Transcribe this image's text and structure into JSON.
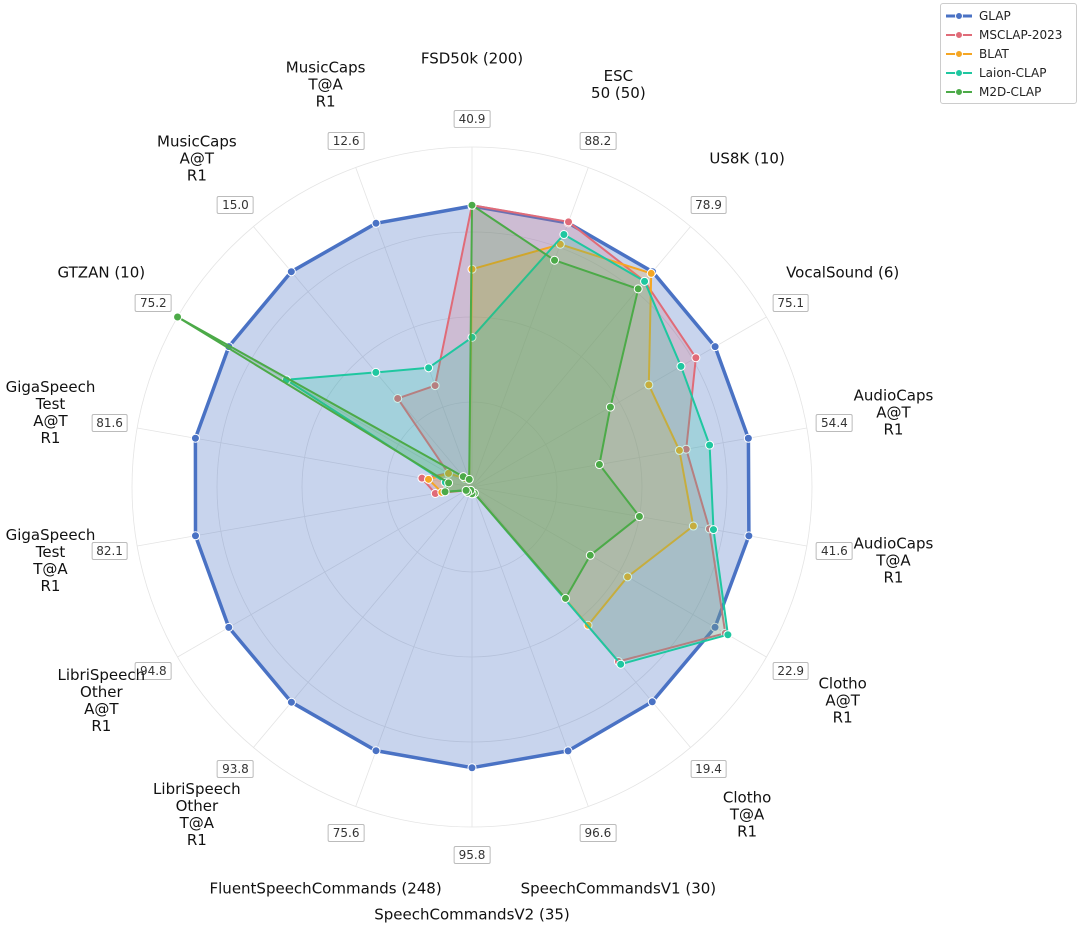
{
  "chart_data": {
    "type": "radar",
    "categories": [
      "FSD50k (200)",
      "ESC\n50 (50)",
      "US8K (10)",
      "VocalSound (6)",
      "AudioCaps\nA@T\nR1",
      "AudioCaps\nT@A\nR1",
      "Clotho\nA@T\nR1",
      "Clotho\nT@A\nR1",
      "SpeechCommandsV1 (30)",
      "SpeechCommandsV2 (35)",
      "FluentSpeechCommands (248)",
      "LibriSpeech\nOther\nT@A\nR1",
      "LibriSpeech\nOther\nA@T\nR1",
      "GigaSpeech\nTest\nT@A\nR1",
      "GigaSpeech\nTest\nA@T\nR1",
      "GTZAN (10)",
      "MusicCaps\nA@T\nR1",
      "MusicCaps\nT@A\nR1"
    ],
    "axis_max": [
      40.9,
      88.2,
      78.9,
      75.1,
      54.4,
      41.6,
      22.9,
      19.4,
      96.6,
      95.8,
      75.6,
      93.8,
      94.8,
      82.1,
      81.6,
      75.2,
      {
        "value": 15.0,
        "label": "15.0"
      },
      12.6
    ],
    "legend_position": "upper right",
    "series": [
      {
        "name": "GLAP",
        "color": "#4a72c4",
        "values": [
          33.8,
          72.9,
          65.2,
          62.0,
          44.9,
          34.4,
          18.9,
          16.0,
          79.8,
          79.1,
          62.4,
          77.5,
          78.3,
          67.8,
          67.4,
          62.1,
          12.4,
          10.4
        ]
      },
      {
        "name": "MSCLAP-2023",
        "color": "#e06b78",
        "values": [
          33.9,
          73.2,
          62.3,
          57.1,
          34.8,
          29.5,
          19.7,
          13.0,
          1.9,
          1.9,
          0.8,
          1.9,
          1.9,
          9.0,
          12.2,
          6.0,
          5.1,
          4.0
        ]
      },
      {
        "name": "BLAT",
        "color": "#f5a623",
        "values": [
          26.2,
          67.0,
          64.7,
          45.1,
          33.7,
          27.5,
          12.1,
          10.3,
          1.9,
          1.9,
          0.8,
          1.9,
          1.9,
          7.4,
          10.6,
          6.0,
          0.5,
          0.3
        ]
      },
      {
        "name": "Laion-CLAP",
        "color": "#1fc7a0",
        "values": [
          18.0,
          69.7,
          62.3,
          53.3,
          38.6,
          30.0,
          19.9,
          13.2,
          1.9,
          1.9,
          0.8,
          1.9,
          1.9,
          6.6,
          6.5,
          47.4,
          6.6,
          4.7
        ]
      },
      {
        "name": "M2D-CLAP",
        "color": "#4caa48",
        "values": [
          33.9,
          62.6,
          60.0,
          35.3,
          20.7,
          20.8,
          9.2,
          8.3,
          1.9,
          1.9,
          0.8,
          1.9,
          1.9,
          6.6,
          5.7,
          75.2,
          0.6,
          0.3
        ]
      }
    ]
  }
}
